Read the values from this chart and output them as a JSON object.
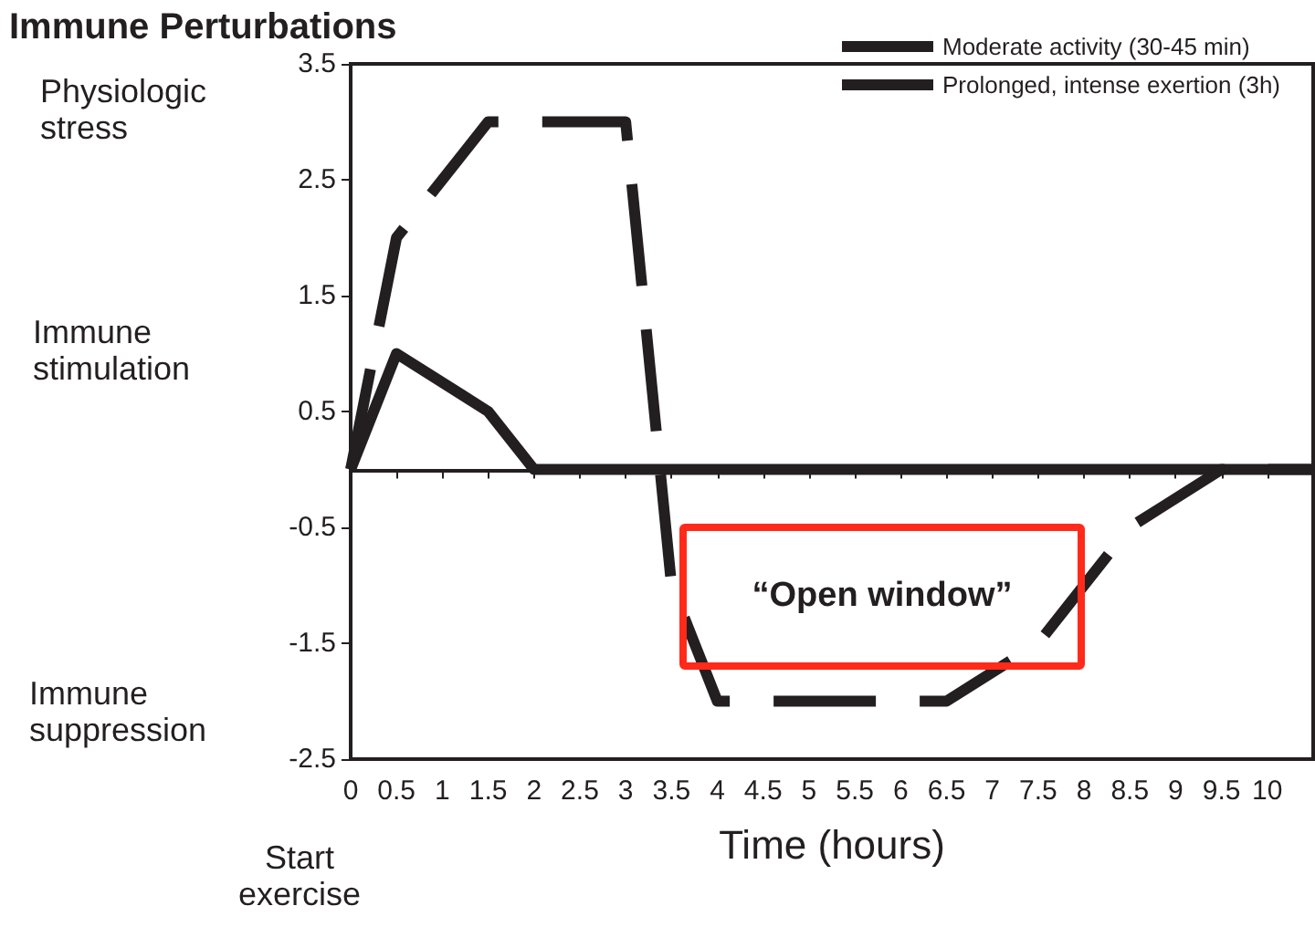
{
  "chart_data": {
    "type": "line",
    "title": "Immune Perturbations",
    "xlabel": "Time (hours)",
    "xlim": [
      0,
      10.5
    ],
    "xticks": [
      0,
      0.5,
      1,
      1.5,
      2,
      2.5,
      3,
      3.5,
      4,
      4.5,
      5,
      5.5,
      6,
      6.5,
      7,
      7.5,
      8,
      8.5,
      9,
      9.5,
      10
    ],
    "ylim": [
      -2.5,
      3.5
    ],
    "yticks": [
      -2.5,
      -1.5,
      -0.5,
      0.5,
      1.5,
      2.5,
      3.5
    ],
    "series": [
      {
        "name": "Moderate activity (30-45 min)",
        "color": "#231f20",
        "line_style": "solid",
        "x": [
          0,
          0.5,
          1.5,
          2,
          10.5
        ],
        "values": [
          0,
          1,
          0.5,
          0,
          0
        ]
      },
      {
        "name": "Prolonged, intense exertion (3h)",
        "color": "#231f20",
        "line_style": "dashed",
        "x": [
          0,
          0.5,
          1.5,
          3,
          3.5,
          4,
          6.5,
          7.5,
          8.5,
          9.5,
          10.5
        ],
        "values": [
          0,
          2,
          3,
          3,
          -1,
          -2,
          -2,
          -1.5,
          -0.5,
          0,
          0
        ]
      }
    ],
    "annotations": [
      "Physiologic stress",
      "Immune stimulation",
      "Immune suppression",
      "Start exercise",
      "“Open window”"
    ],
    "legend": "top right",
    "marker": "none",
    "grid": false
  }
}
